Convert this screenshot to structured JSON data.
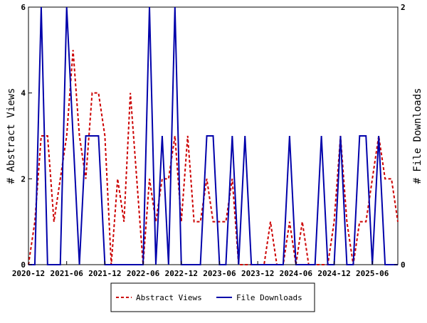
{
  "chart_data": {
    "type": "line",
    "x_ticks": [
      "2020-12",
      "2021-06",
      "2021-12",
      "2022-06",
      "2022-12",
      "2023-06",
      "2023-12",
      "2024-06",
      "2024-12",
      "2025-06"
    ],
    "y_left": {
      "label": "# Abstract Views",
      "ticks": [
        "0",
        "2",
        "4",
        "6"
      ],
      "ylim": [
        0,
        6
      ]
    },
    "y_right": {
      "label": "# File Downloads",
      "ticks": [
        "0",
        "2"
      ],
      "ylim": [
        0,
        2
      ]
    },
    "x_range_months": [
      0,
      58
    ],
    "grid": false,
    "legend_position": "bottom",
    "series": [
      {
        "name": "Abstract Views",
        "axis": "left",
        "color": "#cc0000",
        "style": "dashed",
        "points": [
          [
            0,
            0
          ],
          [
            1,
            1
          ],
          [
            2,
            3
          ],
          [
            3,
            3
          ],
          [
            4,
            1
          ],
          [
            5,
            2
          ],
          [
            6,
            3
          ],
          [
            7,
            5
          ],
          [
            8,
            3
          ],
          [
            9,
            2
          ],
          [
            10,
            4
          ],
          [
            11,
            4
          ],
          [
            12,
            3
          ],
          [
            13,
            0
          ],
          [
            14,
            2
          ],
          [
            15,
            1
          ],
          [
            16,
            4
          ],
          [
            17,
            2
          ],
          [
            18,
            0
          ],
          [
            19,
            2
          ],
          [
            20,
            1
          ],
          [
            21,
            2
          ],
          [
            22,
            2
          ],
          [
            23,
            3
          ],
          [
            24,
            1
          ],
          [
            25,
            3
          ],
          [
            26,
            1
          ],
          [
            27,
            1
          ],
          [
            28,
            2
          ],
          [
            29,
            1
          ],
          [
            30,
            1
          ],
          [
            31,
            1
          ],
          [
            32,
            2
          ],
          [
            33,
            0
          ],
          [
            34,
            0
          ],
          [
            35,
            0
          ],
          [
            36,
            0
          ],
          [
            37,
            0
          ],
          [
            38,
            1
          ],
          [
            39,
            0
          ],
          [
            40,
            0
          ],
          [
            41,
            1
          ],
          [
            42,
            0
          ],
          [
            43,
            1
          ],
          [
            44,
            0
          ],
          [
            45,
            0
          ],
          [
            46,
            0
          ],
          [
            47,
            0
          ],
          [
            48,
            1
          ],
          [
            49,
            3
          ],
          [
            50,
            1
          ],
          [
            51,
            0
          ],
          [
            52,
            1
          ],
          [
            53,
            1
          ],
          [
            54,
            2
          ],
          [
            55,
            3
          ],
          [
            56,
            2
          ],
          [
            57,
            2
          ],
          [
            58,
            1
          ]
        ]
      },
      {
        "name": "File Downloads",
        "axis": "right",
        "color": "#0000aa",
        "style": "solid",
        "points": [
          [
            0,
            0
          ],
          [
            1,
            0
          ],
          [
            2,
            2
          ],
          [
            3,
            0
          ],
          [
            4,
            0
          ],
          [
            5,
            0
          ],
          [
            6,
            2
          ],
          [
            7,
            1
          ],
          [
            8,
            0
          ],
          [
            9,
            1
          ],
          [
            10,
            1
          ],
          [
            11,
            1
          ],
          [
            12,
            0
          ],
          [
            13,
            0
          ],
          [
            14,
            0
          ],
          [
            15,
            0
          ],
          [
            16,
            0
          ],
          [
            17,
            0
          ],
          [
            18,
            0
          ],
          [
            19,
            2
          ],
          [
            20,
            0
          ],
          [
            21,
            1
          ],
          [
            22,
            0
          ],
          [
            23,
            2
          ],
          [
            24,
            0
          ],
          [
            25,
            0
          ],
          [
            26,
            0
          ],
          [
            27,
            0
          ],
          [
            28,
            1
          ],
          [
            29,
            1
          ],
          [
            30,
            0
          ],
          [
            31,
            0
          ],
          [
            32,
            1
          ],
          [
            33,
            0
          ],
          [
            34,
            1
          ],
          [
            35,
            0
          ],
          [
            36,
            0
          ],
          [
            37,
            0
          ],
          [
            38,
            0
          ],
          [
            39,
            0
          ],
          [
            40,
            0
          ],
          [
            41,
            1
          ],
          [
            42,
            0
          ],
          [
            43,
            0
          ],
          [
            44,
            0
          ],
          [
            45,
            0
          ],
          [
            46,
            1
          ],
          [
            47,
            0
          ],
          [
            48,
            0
          ],
          [
            49,
            1
          ],
          [
            50,
            0
          ],
          [
            51,
            0
          ],
          [
            52,
            1
          ],
          [
            53,
            1
          ],
          [
            54,
            0
          ],
          [
            55,
            1
          ],
          [
            56,
            0
          ],
          [
            57,
            0
          ],
          [
            58,
            0
          ]
        ]
      }
    ]
  }
}
